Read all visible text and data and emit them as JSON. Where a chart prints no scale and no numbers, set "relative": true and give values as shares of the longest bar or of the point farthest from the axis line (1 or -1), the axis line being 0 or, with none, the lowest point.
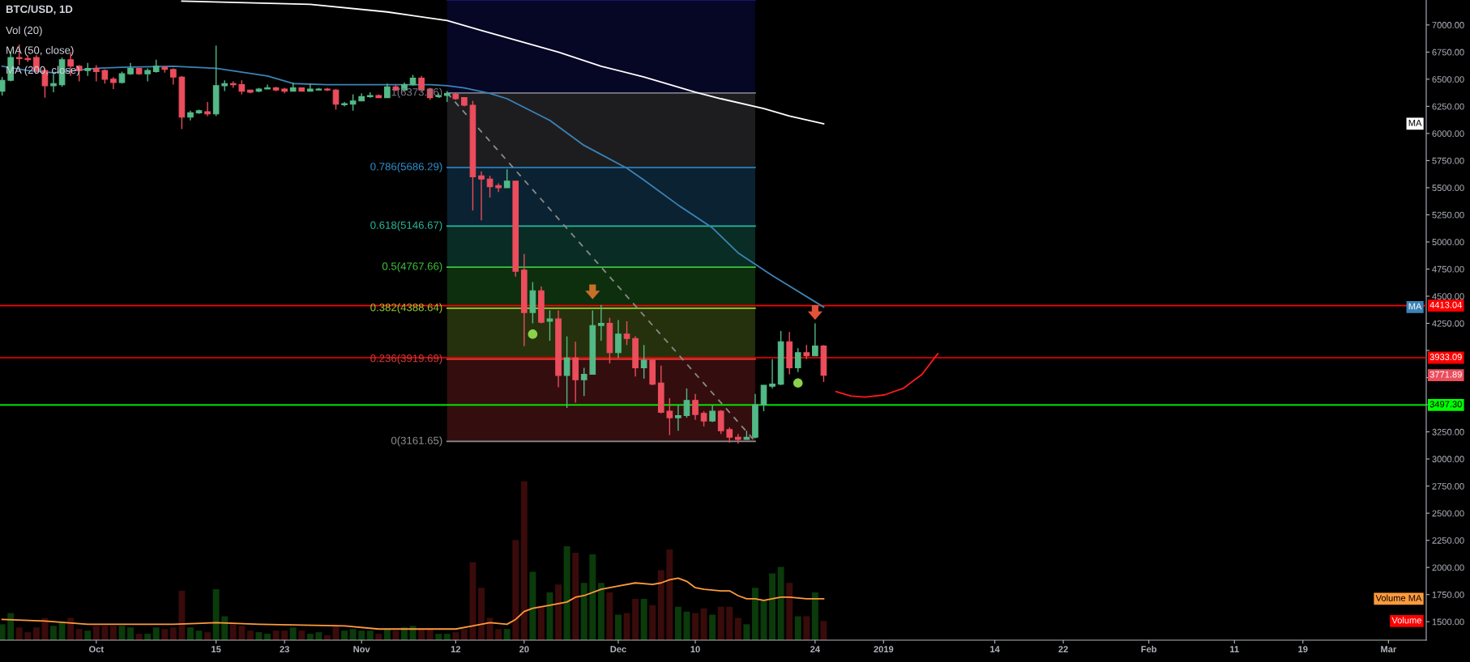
{
  "chart_data": [
    {
      "type": "candlestick",
      "title": "BTC/USD, 1D",
      "annotations": [
        "Vol (20)",
        "MA (50, close)",
        "MA (200, close)"
      ],
      "value_labels": [
        null,
        null,
        null,
        null,
        null,
        null,
        null,
        null,
        null,
        null,
        null,
        null,
        null,
        null,
        null,
        null,
        null,
        null,
        null,
        null,
        null,
        null,
        null,
        null,
        null,
        null,
        null,
        null,
        null,
        null,
        null,
        null,
        null,
        null,
        null,
        null,
        null,
        null,
        null,
        null,
        null,
        null,
        null,
        null,
        null,
        null,
        null,
        null,
        null,
        null,
        null,
        null,
        null,
        null,
        null,
        null,
        null,
        null,
        null,
        null,
        null,
        null,
        null,
        null,
        null,
        null,
        null,
        null,
        null,
        null,
        null,
        null,
        null,
        null,
        null,
        null,
        null,
        null,
        null,
        null,
        null,
        null,
        null,
        null,
        null,
        null,
        null,
        null,
        null,
        null,
        null,
        null,
        null,
        null,
        null,
        null,
        "3771.89"
      ],
      "x": [
        "2018-09-20",
        "2018-09-21",
        "2018-09-22",
        "2018-09-23",
        "2018-09-24",
        "2018-09-25",
        "2018-09-26",
        "2018-09-27",
        "2018-09-28",
        "2018-09-29",
        "2018-09-30",
        "2018-10-01",
        "2018-10-02",
        "2018-10-03",
        "2018-10-04",
        "2018-10-05",
        "2018-10-06",
        "2018-10-07",
        "2018-10-08",
        "2018-10-09",
        "2018-10-10",
        "2018-10-11",
        "2018-10-12",
        "2018-10-13",
        "2018-10-14",
        "2018-10-15",
        "2018-10-16",
        "2018-10-17",
        "2018-10-18",
        "2018-10-19",
        "2018-10-20",
        "2018-10-21",
        "2018-10-22",
        "2018-10-23",
        "2018-10-24",
        "2018-10-25",
        "2018-10-26",
        "2018-10-27",
        "2018-10-28",
        "2018-10-29",
        "2018-10-30",
        "2018-10-31",
        "2018-11-01",
        "2018-11-02",
        "2018-11-03",
        "2018-11-04",
        "2018-11-05",
        "2018-11-06",
        "2018-11-07",
        "2018-11-08",
        "2018-11-09",
        "2018-11-10",
        "2018-11-11",
        "2018-11-12",
        "2018-11-13",
        "2018-11-14",
        "2018-11-15",
        "2018-11-16",
        "2018-11-17",
        "2018-11-18",
        "2018-11-19",
        "2018-11-20",
        "2018-11-21",
        "2018-11-22",
        "2018-11-23",
        "2018-11-24",
        "2018-11-25",
        "2018-11-26",
        "2018-11-27",
        "2018-11-28",
        "2018-11-29",
        "2018-11-30",
        "2018-12-01",
        "2018-12-02",
        "2018-12-03",
        "2018-12-04",
        "2018-12-05",
        "2018-12-06",
        "2018-12-07",
        "2018-12-08",
        "2018-12-09",
        "2018-12-10",
        "2018-12-11",
        "2018-12-12",
        "2018-12-13",
        "2018-12-14",
        "2018-12-15",
        "2018-12-16",
        "2018-12-17",
        "2018-12-18",
        "2018-12-19",
        "2018-12-20",
        "2018-12-21",
        "2018-12-22",
        "2018-12-23",
        "2018-12-24",
        "2018-12-25"
      ],
      "ohlc": [
        [
          6390,
          6520,
          6350,
          6490
        ],
        [
          6490,
          6750,
          6480,
          6700
        ],
        [
          6700,
          6820,
          6630,
          6690
        ],
        [
          6690,
          6720,
          6660,
          6680
        ],
        [
          6700,
          6720,
          6560,
          6580
        ],
        [
          6580,
          6600,
          6330,
          6440
        ],
        [
          6440,
          6550,
          6380,
          6460
        ],
        [
          6450,
          6700,
          6430,
          6680
        ],
        [
          6680,
          6750,
          6530,
          6620
        ],
        [
          6620,
          6630,
          6480,
          6580
        ],
        [
          6580,
          6650,
          6530,
          6600
        ],
        [
          6600,
          6630,
          6480,
          6570
        ],
        [
          6580,
          6590,
          6460,
          6500
        ],
        [
          6500,
          6520,
          6410,
          6470
        ],
        [
          6470,
          6570,
          6460,
          6550
        ],
        [
          6550,
          6650,
          6540,
          6600
        ],
        [
          6600,
          6600,
          6540,
          6550
        ],
        [
          6550,
          6600,
          6480,
          6580
        ],
        [
          6570,
          6680,
          6560,
          6620
        ],
        [
          6610,
          6620,
          6560,
          6590
        ],
        [
          6590,
          6600,
          6450,
          6520
        ],
        [
          6520,
          6530,
          6040,
          6150
        ],
        [
          6150,
          6210,
          6120,
          6190
        ],
        [
          6190,
          6220,
          6180,
          6210
        ],
        [
          6200,
          6290,
          6160,
          6180
        ],
        [
          6180,
          6810,
          6160,
          6440
        ],
        [
          6440,
          6490,
          6390,
          6460
        ],
        [
          6460,
          6480,
          6420,
          6450
        ],
        [
          6450,
          6490,
          6360,
          6390
        ],
        [
          6400,
          6400,
          6370,
          6380
        ],
        [
          6390,
          6420,
          6380,
          6410
        ],
        [
          6410,
          6450,
          6410,
          6420
        ],
        [
          6420,
          6430,
          6390,
          6400
        ],
        [
          6410,
          6420,
          6370,
          6390
        ],
        [
          6390,
          6470,
          6390,
          6420
        ],
        [
          6420,
          6420,
          6390,
          6390
        ],
        [
          6390,
          6460,
          6390,
          6410
        ],
        [
          6400,
          6420,
          6400,
          6410
        ],
        [
          6410,
          6420,
          6390,
          6400
        ],
        [
          6400,
          6410,
          6220,
          6270
        ],
        [
          6265,
          6290,
          6250,
          6275
        ],
        [
          6270,
          6360,
          6210,
          6300
        ],
        [
          6300,
          6370,
          6300,
          6340
        ],
        [
          6340,
          6380,
          6330,
          6350
        ],
        [
          6350,
          6360,
          6330,
          6330
        ],
        [
          6330,
          6460,
          6330,
          6430
        ],
        [
          6430,
          6450,
          6390,
          6400
        ],
        [
          6400,
          6470,
          6390,
          6450
        ],
        [
          6450,
          6540,
          6440,
          6510
        ],
        [
          6510,
          6530,
          6390,
          6400
        ],
        [
          6410,
          6420,
          6310,
          6330
        ],
        [
          6340,
          6370,
          6330,
          6350
        ],
        [
          6350,
          6390,
          6290,
          6370
        ],
        [
          6360,
          6380,
          6310,
          6320
        ],
        [
          6330,
          6330,
          6250,
          6260
        ],
        [
          6260,
          6300,
          5290,
          5600
        ],
        [
          5610,
          5650,
          5200,
          5580
        ],
        [
          5580,
          5610,
          5410,
          5510
        ],
        [
          5520,
          5540,
          5460,
          5500
        ],
        [
          5500,
          5670,
          5500,
          5560
        ],
        [
          5560,
          5560,
          4680,
          4730
        ],
        [
          4740,
          4890,
          4040,
          4350
        ],
        [
          4350,
          4630,
          4250,
          4550
        ],
        [
          4550,
          4590,
          4250,
          4260
        ],
        [
          4270,
          4370,
          4090,
          4290
        ],
        [
          4290,
          4370,
          3660,
          3770
        ],
        [
          3770,
          4130,
          3470,
          3930
        ],
        [
          3930,
          4080,
          3520,
          3730
        ],
        [
          3730,
          3840,
          3580,
          3780
        ],
        [
          3780,
          4370,
          3780,
          4230
        ],
        [
          4230,
          4420,
          4090,
          4250
        ],
        [
          4250,
          4300,
          3880,
          3980
        ],
        [
          3980,
          4280,
          3930,
          4150
        ],
        [
          4150,
          4270,
          4050,
          4110
        ],
        [
          4110,
          4130,
          3760,
          3840
        ],
        [
          3840,
          4050,
          3740,
          3910
        ],
        [
          3910,
          3910,
          3680,
          3690
        ],
        [
          3700,
          3860,
          3420,
          3430
        ],
        [
          3440,
          3560,
          3220,
          3380
        ],
        [
          3380,
          3500,
          3260,
          3400
        ],
        [
          3400,
          3650,
          3380,
          3540
        ],
        [
          3540,
          3600,
          3360,
          3410
        ],
        [
          3420,
          3440,
          3300,
          3350
        ],
        [
          3350,
          3500,
          3340,
          3440
        ],
        [
          3440,
          3450,
          3230,
          3260
        ],
        [
          3270,
          3290,
          3150,
          3200
        ],
        [
          3200,
          3230,
          3140,
          3180
        ],
        [
          3180,
          3260,
          3180,
          3200
        ],
        [
          3200,
          3600,
          3190,
          3500
        ],
        [
          3500,
          3680,
          3440,
          3680
        ],
        [
          3670,
          3920,
          3650,
          3690
        ],
        [
          3690,
          4180,
          3680,
          4080
        ],
        [
          4080,
          4170,
          3780,
          3840
        ],
        [
          3840,
          4020,
          3800,
          3980
        ],
        [
          3980,
          4050,
          3920,
          3950
        ],
        [
          3950,
          4250,
          3950,
          4040
        ],
        [
          4040,
          4050,
          3710,
          3771.89
        ]
      ],
      "colors": [
        "#53b987",
        "#53b987",
        "#eb4d5c",
        "#eb4d5c",
        "#eb4d5c",
        "#eb4d5c",
        "#53b987",
        "#53b987",
        "#eb4d5c",
        "#eb4d5c",
        "#53b987",
        "#eb4d5c",
        "#eb4d5c",
        "#eb4d5c",
        "#53b987",
        "#53b987",
        "#eb4d5c",
        "#53b987",
        "#53b987",
        "#eb4d5c",
        "#eb4d5c",
        "#eb4d5c",
        "#53b987",
        "#53b987",
        "#eb4d5c",
        "#53b987",
        "#53b987",
        "#eb4d5c",
        "#eb4d5c",
        "#eb4d5c",
        "#53b987",
        "#53b987",
        "#eb4d5c",
        "#eb4d5c",
        "#53b987",
        "#eb4d5c",
        "#53b987",
        "#53b987",
        "#eb4d5c",
        "#eb4d5c",
        "#53b987",
        "#53b987",
        "#53b987",
        "#53b987",
        "#eb4d5c",
        "#53b987",
        "#eb4d5c",
        "#53b987",
        "#53b987",
        "#eb4d5c",
        "#eb4d5c",
        "#53b987",
        "#53b987",
        "#eb4d5c",
        "#eb4d5c",
        "#eb4d5c",
        "#eb4d5c",
        "#eb4d5c",
        "#eb4d5c",
        "#53b987",
        "#eb4d5c",
        "#eb4d5c",
        "#53b987",
        "#eb4d5c",
        "#53b987",
        "#eb4d5c",
        "#53b987",
        "#eb4d5c",
        "#53b987",
        "#53b987",
        "#53b987",
        "#eb4d5c",
        "#53b987",
        "#eb4d5c",
        "#eb4d5c",
        "#53b987",
        "#eb4d5c",
        "#eb4d5c",
        "#eb4d5c",
        "#53b987",
        "#53b987",
        "#eb4d5c",
        "#eb4d5c",
        "#53b987",
        "#eb4d5c",
        "#eb4d5c",
        "#eb4d5c",
        "#53b987",
        "#53b987",
        "#53b987",
        "#53b987",
        "#53b987",
        "#eb4d5c",
        "#53b987",
        "#eb4d5c",
        "#53b987",
        "#eb4d5c"
      ],
      "series": [
        {
          "type": "area",
          "color": "#1a1a9a",
          "x": [
            "2018-11-11",
            "2018-12-17"
          ],
          "values": [
            7230,
            7230
          ]
        },
        {
          "type": "area",
          "name": "1(6373.66)",
          "color": "#787b86",
          "x": [
            "2018-11-11",
            "2018-12-17"
          ],
          "values": [
            6373.66,
            6373.66
          ]
        },
        {
          "type": "area",
          "name": "0.786(5686.29)",
          "color": "#2e8fd0",
          "x": [
            "2018-11-11",
            "2018-12-17"
          ],
          "values": [
            5686.29,
            5686.29
          ]
        },
        {
          "type": "area",
          "name": "0.618(5146.67)",
          "color": "#26b89a",
          "x": [
            "2018-11-11",
            "2018-12-17"
          ],
          "values": [
            5146.67,
            5146.67
          ]
        },
        {
          "type": "area",
          "name": "0.5(4767.66)",
          "color": "#3cc43c",
          "x": [
            "2018-11-11",
            "2018-12-17"
          ],
          "values": [
            4767.66,
            4767.66
          ]
        },
        {
          "type": "area",
          "name": "0.382(4388.64)",
          "color": "#9acd32",
          "x": [
            "2018-11-11",
            "2018-12-17"
          ],
          "values": [
            4388.64,
            4388.64
          ]
        },
        {
          "type": "area",
          "name": "0.236(3919.69)",
          "color": "#d83a3a",
          "x": [
            "2018-11-11",
            "2018-12-17"
          ],
          "values": [
            3919.69,
            3919.69
          ]
        },
        {
          "type": "line",
          "name": "0(3161.65)",
          "color": "#8e8e8e",
          "x": [
            "2018-11-11",
            "2018-12-17"
          ],
          "values": [
            3161.65,
            3161.65
          ]
        },
        {
          "type": "line",
          "line_style": "dashed",
          "color": "#8a8a8a",
          "x": [
            "2018-11-11",
            "2018-12-17"
          ],
          "values": [
            6373.66,
            3161.65
          ]
        },
        {
          "type": "line",
          "name": "MA",
          "color": "#ffffff",
          "x": [
            "2018-10-11",
            "2018-10-26",
            "2018-11-04",
            "2018-11-11",
            "2018-11-15",
            "2018-11-24",
            "2018-11-29",
            "2018-12-04",
            "2018-12-10",
            "2018-12-13",
            "2018-12-18",
            "2018-12-21",
            "2018-12-25"
          ],
          "values": [
            7220,
            7190,
            7120,
            7040,
            6950,
            6750,
            6620,
            6520,
            6380,
            6320,
            6230,
            6160,
            6090
          ]
        },
        {
          "type": "line",
          "name": "MA",
          "color": "#3b83b6",
          "x": [
            "2018-09-20",
            "2018-09-23",
            "2018-09-26",
            "2018-10-01",
            "2018-10-04",
            "2018-10-10",
            "2018-10-15",
            "2018-10-21",
            "2018-10-24",
            "2018-10-28",
            "2018-11-09",
            "2018-11-11",
            "2018-11-13",
            "2018-11-16",
            "2018-11-18",
            "2018-11-23",
            "2018-11-27",
            "2018-12-02",
            "2018-12-04",
            "2018-12-08",
            "2018-12-12",
            "2018-12-15",
            "2018-12-19",
            "2018-12-25"
          ],
          "values": [
            6620,
            6580,
            6560,
            6600,
            6610,
            6620,
            6600,
            6530,
            6460,
            6450,
            6450,
            6440,
            6420,
            6370,
            6320,
            6120,
            5890,
            5680,
            5570,
            5340,
            5130,
            4900,
            4690,
            4400
          ]
        },
        {
          "type": "scatter",
          "marker": "circle",
          "color": "#8bd14a",
          "x": [
            "2018-11-21",
            "2018-12-22"
          ],
          "values": [
            4150,
            3700
          ]
        },
        {
          "type": "scatter",
          "marker": "triangle",
          "color": "#c8702a",
          "x": [
            "2018-11-28"
          ],
          "values": [
            4540
          ]
        },
        {
          "type": "scatter",
          "marker": "triangle",
          "color": "#e0533a",
          "x": [
            "2018-12-24"
          ],
          "values": [
            4350
          ]
        },
        {
          "type": "line",
          "color": "#ff1a1a",
          "x": [
            "2018-12-26T11:00",
            "2018-12-28T05:00",
            "2018-12-29T21:00",
            "2019-01-01T02:00",
            "2019-01-03T07:00",
            "2019-01-05T12:00",
            "2019-01-07T08:00"
          ],
          "values": [
            3620,
            3580,
            3570,
            3590,
            3650,
            3780,
            3970
          ]
        }
      ],
      "ref_lines": [
        {
          "axis": "y",
          "value": 4413.04,
          "label": "4413.04",
          "color": "#ff0000"
        },
        {
          "axis": "y",
          "value": 3933.09,
          "label": "3933.09",
          "color": "#ff0000"
        },
        {
          "axis": "y",
          "value": 3497.3,
          "label": "3497.30",
          "color": "#00ff00"
        }
      ],
      "xlim": [
        "2018-09-19T18:00",
        "2019-03-05T10:00"
      ],
      "xticks": [
        {
          "value": "2018-10-01",
          "label": "Oct"
        },
        {
          "value": "2018-10-15",
          "label": "15"
        },
        {
          "value": "2018-10-23",
          "label": "23"
        },
        {
          "value": "2018-11-01",
          "label": "Nov"
        },
        {
          "value": "2018-11-12",
          "label": "12"
        },
        {
          "value": "2018-11-20",
          "label": "20"
        },
        {
          "value": "2018-12-01",
          "label": "Dec"
        },
        {
          "value": "2018-12-10",
          "label": "10"
        },
        {
          "value": "2018-12-24",
          "label": "24"
        },
        {
          "value": "2019-01-01",
          "label": "2019"
        },
        {
          "value": "2019-01-14",
          "label": "14"
        },
        {
          "value": "2019-01-22",
          "label": "22"
        },
        {
          "value": "2019-02-01",
          "label": "Feb"
        },
        {
          "value": "2019-02-11",
          "label": "11"
        },
        {
          "value": "2019-02-19",
          "label": "19"
        },
        {
          "value": "2019-03-01",
          "label": "Mar"
        }
      ],
      "ylim": [
        1330,
        7230
      ],
      "yticks": [
        {
          "value": 1500,
          "label": "1500.00"
        },
        {
          "value": 1750,
          "label": "1750.00"
        },
        {
          "value": 2000,
          "label": "2000.00"
        },
        {
          "value": 2250,
          "label": "2250.00"
        },
        {
          "value": 2500,
          "label": "2500.00"
        },
        {
          "value": 2750,
          "label": "2750.00"
        },
        {
          "value": 3000,
          "label": "3000.00"
        },
        {
          "value": 3250,
          "label": "3250.00"
        },
        {
          "value": 3500,
          "label": null
        },
        {
          "value": 3750,
          "label": null
        },
        {
          "value": 4000,
          "label": null
        },
        {
          "value": 4250,
          "label": "4250.00"
        },
        {
          "value": 4500,
          "label": "4500.00"
        },
        {
          "value": 4750,
          "label": "4750.00"
        },
        {
          "value": 5000,
          "label": "5000.00"
        },
        {
          "value": 5250,
          "label": "5250.00"
        },
        {
          "value": 5500,
          "label": "5500.00"
        },
        {
          "value": 5750,
          "label": "5750.00"
        },
        {
          "value": 6000,
          "label": "6000.00"
        },
        {
          "value": 6250,
          "label": "6250.00"
        },
        {
          "value": 6500,
          "label": "6500.00"
        },
        {
          "value": 6750,
          "label": "6750.00"
        },
        {
          "value": 7000,
          "label": "7000.00"
        }
      ]
    },
    {
      "type": "bar",
      "relative": true,
      "tick_labels": false,
      "xlim": [
        "2018-09-19T18:00",
        "2019-03-05T10:00"
      ],
      "x": [
        "2018-09-20",
        "2018-09-21",
        "2018-09-22",
        "2018-09-23",
        "2018-09-24",
        "2018-09-25",
        "2018-09-26",
        "2018-09-27",
        "2018-09-28",
        "2018-09-29",
        "2018-09-30",
        "2018-10-01",
        "2018-10-02",
        "2018-10-03",
        "2018-10-04",
        "2018-10-05",
        "2018-10-06",
        "2018-10-07",
        "2018-10-08",
        "2018-10-09",
        "2018-10-10",
        "2018-10-11",
        "2018-10-12",
        "2018-10-13",
        "2018-10-14",
        "2018-10-15",
        "2018-10-16",
        "2018-10-17",
        "2018-10-18",
        "2018-10-19",
        "2018-10-20",
        "2018-10-21",
        "2018-10-22",
        "2018-10-23",
        "2018-10-24",
        "2018-10-25",
        "2018-10-26",
        "2018-10-27",
        "2018-10-28",
        "2018-10-29",
        "2018-10-30",
        "2018-10-31",
        "2018-11-01",
        "2018-11-02",
        "2018-11-03",
        "2018-11-04",
        "2018-11-05",
        "2018-11-06",
        "2018-11-07",
        "2018-11-08",
        "2018-11-09",
        "2018-11-10",
        "2018-11-11",
        "2018-11-12",
        "2018-11-13",
        "2018-11-14",
        "2018-11-15",
        "2018-11-16",
        "2018-11-17",
        "2018-11-18",
        "2018-11-19",
        "2018-11-20",
        "2018-11-21",
        "2018-11-22",
        "2018-11-23",
        "2018-11-24",
        "2018-11-25",
        "2018-11-26",
        "2018-11-27",
        "2018-11-28",
        "2018-11-29",
        "2018-11-30",
        "2018-12-01",
        "2018-12-02",
        "2018-12-03",
        "2018-12-04",
        "2018-12-05",
        "2018-12-06",
        "2018-12-07",
        "2018-12-08",
        "2018-12-09",
        "2018-12-10",
        "2018-12-11",
        "2018-12-12",
        "2018-12-13",
        "2018-12-14",
        "2018-12-15",
        "2018-12-16",
        "2018-12-17",
        "2018-12-18",
        "2018-12-19",
        "2018-12-20",
        "2018-12-21",
        "2018-12-22",
        "2018-12-23",
        "2018-12-24",
        "2018-12-25"
      ],
      "series": [
        {
          "name": "Volume",
          "type": "bar",
          "color": "#ff0000",
          "values": [
            0.1,
            0.17,
            0.08,
            0.05,
            0.08,
            0.14,
            0.09,
            0.11,
            0.14,
            0.07,
            0.06,
            0.09,
            0.09,
            0.09,
            0.09,
            0.08,
            0.04,
            0.04,
            0.08,
            0.07,
            0.08,
            0.31,
            0.08,
            0.06,
            0.05,
            0.32,
            0.15,
            0.1,
            0.09,
            0.06,
            0.05,
            0.04,
            0.06,
            0.06,
            0.08,
            0.06,
            0.04,
            0.05,
            0.03,
            0.09,
            0.06,
            0.07,
            0.06,
            0.06,
            0.04,
            0.07,
            0.06,
            0.08,
            0.09,
            0.07,
            0.07,
            0.04,
            0.04,
            0.05,
            0.07,
            0.49,
            0.33,
            0.14,
            0.07,
            0.07,
            0.63,
            1,
            0.43,
            0.21,
            0.3,
            0.35,
            0.59,
            0.55,
            0.36,
            0.54,
            0.36,
            0.3,
            0.16,
            0.17,
            0.26,
            0.26,
            0.22,
            0.44,
            0.57,
            0.21,
            0.18,
            0.17,
            0.2,
            0.16,
            0.21,
            0.21,
            0.14,
            0.1,
            0.33,
            0.25,
            0.42,
            0.46,
            0.36,
            0.15,
            0.15,
            0.3,
            0.12
          ],
          "colors": [
            "#0b3a0b",
            "#0b3a0b",
            "#3a0b0b",
            "#3a0b0b",
            "#3a0b0b",
            "#3a0b0b",
            "#0b3a0b",
            "#0b3a0b",
            "#3a0b0b",
            "#3a0b0b",
            "#0b3a0b",
            "#3a0b0b",
            "#3a0b0b",
            "#3a0b0b",
            "#0b3a0b",
            "#0b3a0b",
            "#3a0b0b",
            "#0b3a0b",
            "#0b3a0b",
            "#3a0b0b",
            "#3a0b0b",
            "#3a0b0b",
            "#0b3a0b",
            "#0b3a0b",
            "#3a0b0b",
            "#0b3a0b",
            "#0b3a0b",
            "#3a0b0b",
            "#3a0b0b",
            "#3a0b0b",
            "#0b3a0b",
            "#0b3a0b",
            "#3a0b0b",
            "#3a0b0b",
            "#0b3a0b",
            "#3a0b0b",
            "#0b3a0b",
            "#0b3a0b",
            "#3a0b0b",
            "#3a0b0b",
            "#0b3a0b",
            "#0b3a0b",
            "#0b3a0b",
            "#0b3a0b",
            "#3a0b0b",
            "#0b3a0b",
            "#3a0b0b",
            "#0b3a0b",
            "#0b3a0b",
            "#3a0b0b",
            "#3a0b0b",
            "#0b3a0b",
            "#0b3a0b",
            "#3a0b0b",
            "#3a0b0b",
            "#3a0b0b",
            "#3a0b0b",
            "#3a0b0b",
            "#3a0b0b",
            "#0b3a0b",
            "#3a0b0b",
            "#3a0b0b",
            "#0b3a0b",
            "#3a0b0b",
            "#0b3a0b",
            "#3a0b0b",
            "#0b3a0b",
            "#3a0b0b",
            "#0b3a0b",
            "#0b3a0b",
            "#0b3a0b",
            "#3a0b0b",
            "#0b3a0b",
            "#3a0b0b",
            "#3a0b0b",
            "#0b3a0b",
            "#3a0b0b",
            "#3a0b0b",
            "#3a0b0b",
            "#0b3a0b",
            "#0b3a0b",
            "#3a0b0b",
            "#3a0b0b",
            "#0b3a0b",
            "#3a0b0b",
            "#3a0b0b",
            "#3a0b0b",
            "#0b3a0b",
            "#0b3a0b",
            "#0b3a0b",
            "#0b3a0b",
            "#0b3a0b",
            "#3a0b0b",
            "#0b3a0b",
            "#3a0b0b",
            "#0b3a0b",
            "#3a0b0b"
          ]
        },
        {
          "name": "Volume MA",
          "type": "line",
          "color": "#ff9a3c",
          "x": [
            "2018-09-20",
            "2018-09-25",
            "2018-09-30",
            "2018-10-10",
            "2018-10-15",
            "2018-10-20",
            "2018-10-30",
            "2018-11-03",
            "2018-11-09",
            "2018-11-12",
            "2018-11-14",
            "2018-11-16",
            "2018-11-18",
            "2018-11-19",
            "2018-11-20",
            "2018-11-21",
            "2018-11-23",
            "2018-11-25",
            "2018-11-26",
            "2018-11-27",
            "2018-11-29",
            "2018-12-01",
            "2018-12-03",
            "2018-12-05",
            "2018-12-06",
            "2018-12-07",
            "2018-12-08",
            "2018-12-09",
            "2018-12-10",
            "2018-12-11",
            "2018-12-13",
            "2018-12-14",
            "2018-12-15",
            "2018-12-16",
            "2018-12-17",
            "2018-12-18",
            "2018-12-19",
            "2018-12-20",
            "2018-12-21",
            "2018-12-23",
            "2018-12-25"
          ],
          "values": [
            0.13,
            0.12,
            0.1,
            0.1,
            0.11,
            0.1,
            0.09,
            0.07,
            0.07,
            0.07,
            0.09,
            0.11,
            0.1,
            0.13,
            0.18,
            0.2,
            0.22,
            0.24,
            0.27,
            0.28,
            0.32,
            0.34,
            0.36,
            0.35,
            0.36,
            0.38,
            0.39,
            0.37,
            0.33,
            0.32,
            0.31,
            0.31,
            0.28,
            0.26,
            0.26,
            0.25,
            0.26,
            0.27,
            0.27,
            0.26,
            0.26
          ]
        }
      ]
    }
  ]
}
